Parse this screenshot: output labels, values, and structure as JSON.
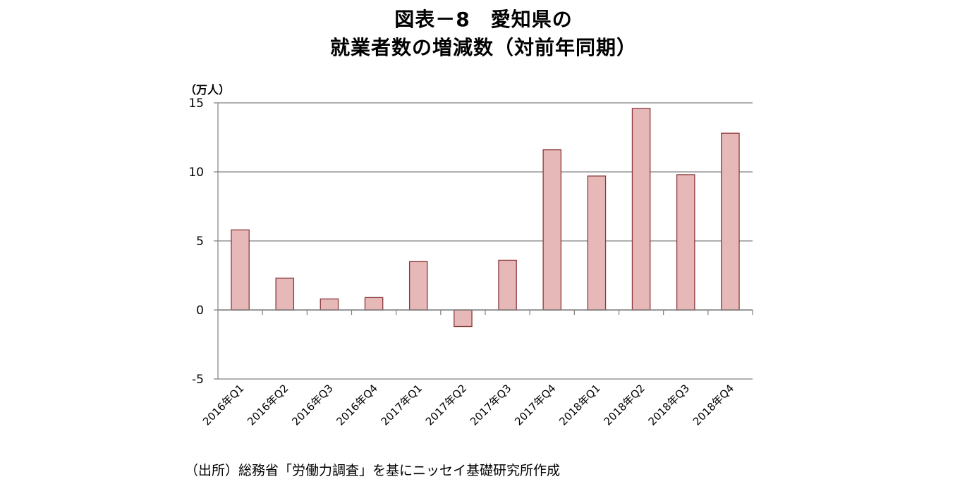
{
  "title": {
    "line1": "図表－8　愛知県の",
    "line2": "就業者数の増減数（対前年同期）"
  },
  "y_unit": "（万人）",
  "source_note": "（出所）総務省「労働力調査」を基にニッセイ基礎研究所作成",
  "colors": {
    "bar_fill": "#e6b8b7",
    "bar_stroke": "#8b3a3a",
    "grid": "#808080",
    "axis": "#808080"
  },
  "chart_data": {
    "type": "bar",
    "title": "図表－8 愛知県の就業者数の増減数（対前年同期）",
    "xlabel": "",
    "ylabel": "（万人）",
    "categories": [
      "2016年Q1",
      "2016年Q2",
      "2016年Q3",
      "2016年Q4",
      "2017年Q1",
      "2017年Q2",
      "2017年Q3",
      "2017年Q4",
      "2018年Q1",
      "2018年Q2",
      "2018年Q3",
      "2018年Q4"
    ],
    "values": [
      5.8,
      2.3,
      0.8,
      0.9,
      3.5,
      -1.2,
      3.6,
      11.6,
      9.7,
      14.6,
      9.8,
      12.8
    ],
    "ylim": [
      -5,
      15
    ],
    "yticks": [
      -5,
      0,
      5,
      10,
      15
    ],
    "grid": true,
    "legend": null
  }
}
